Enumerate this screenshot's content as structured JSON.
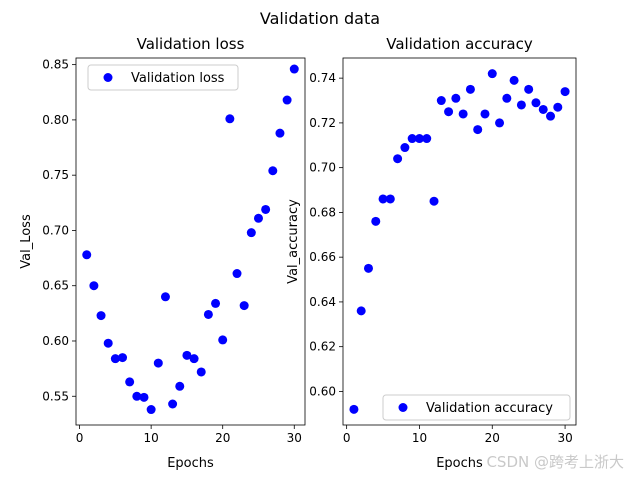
{
  "figure": {
    "suptitle": "Validation data",
    "watermark": "CSDN @跨考上浙大"
  },
  "chart_data": [
    {
      "type": "scatter",
      "title": "Validation loss",
      "xlabel": "Epochs",
      "ylabel": "Val_Loss",
      "xlim": [
        -0.5,
        31.5
      ],
      "ylim": [
        0.524,
        0.856
      ],
      "xticks": [
        0,
        10,
        20,
        30
      ],
      "yticks": [
        0.55,
        0.6,
        0.65,
        0.7,
        0.75,
        0.8,
        0.85
      ],
      "ytick_labels": [
        "0.55",
        "0.60",
        "0.65",
        "0.70",
        "0.75",
        "0.80",
        "0.85"
      ],
      "legend": "top-left",
      "marker_color": "#0000ff",
      "series": [
        {
          "name": "Validation loss",
          "x": [
            1,
            2,
            3,
            4,
            5,
            6,
            7,
            8,
            9,
            10,
            11,
            12,
            13,
            14,
            15,
            16,
            17,
            18,
            19,
            20,
            21,
            22,
            23,
            24,
            25,
            26,
            27,
            28,
            29,
            30
          ],
          "y": [
            0.678,
            0.65,
            0.623,
            0.598,
            0.584,
            0.585,
            0.563,
            0.55,
            0.549,
            0.538,
            0.58,
            0.64,
            0.543,
            0.559,
            0.587,
            0.584,
            0.572,
            0.624,
            0.634,
            0.601,
            0.801,
            0.661,
            0.632,
            0.698,
            0.711,
            0.719,
            0.754,
            0.788,
            0.818,
            0.846
          ]
        }
      ]
    },
    {
      "type": "scatter",
      "title": "Validation accuracy",
      "xlabel": "Epochs",
      "ylabel": "Val_accuracy",
      "xlim": [
        -0.5,
        31.5
      ],
      "ylim": [
        0.585,
        0.749
      ],
      "xticks": [
        0,
        10,
        20,
        30
      ],
      "yticks": [
        0.6,
        0.62,
        0.64,
        0.66,
        0.68,
        0.7,
        0.72,
        0.74
      ],
      "ytick_labels": [
        "0.60",
        "0.62",
        "0.64",
        "0.66",
        "0.68",
        "0.70",
        "0.72",
        "0.74"
      ],
      "legend": "bottom-right",
      "marker_color": "#0000ff",
      "series": [
        {
          "name": "Validation accuracy",
          "x": [
            1,
            2,
            3,
            4,
            5,
            6,
            7,
            8,
            9,
            10,
            11,
            12,
            13,
            14,
            15,
            16,
            17,
            18,
            19,
            20,
            21,
            22,
            23,
            24,
            25,
            26,
            27,
            28,
            29,
            30
          ],
          "y": [
            0.592,
            0.636,
            0.655,
            0.676,
            0.686,
            0.686,
            0.704,
            0.709,
            0.713,
            0.713,
            0.713,
            0.685,
            0.73,
            0.725,
            0.731,
            0.724,
            0.735,
            0.717,
            0.724,
            0.742,
            0.72,
            0.731,
            0.739,
            0.728,
            0.735,
            0.729,
            0.726,
            0.723,
            0.727,
            0.734
          ]
        }
      ]
    }
  ]
}
